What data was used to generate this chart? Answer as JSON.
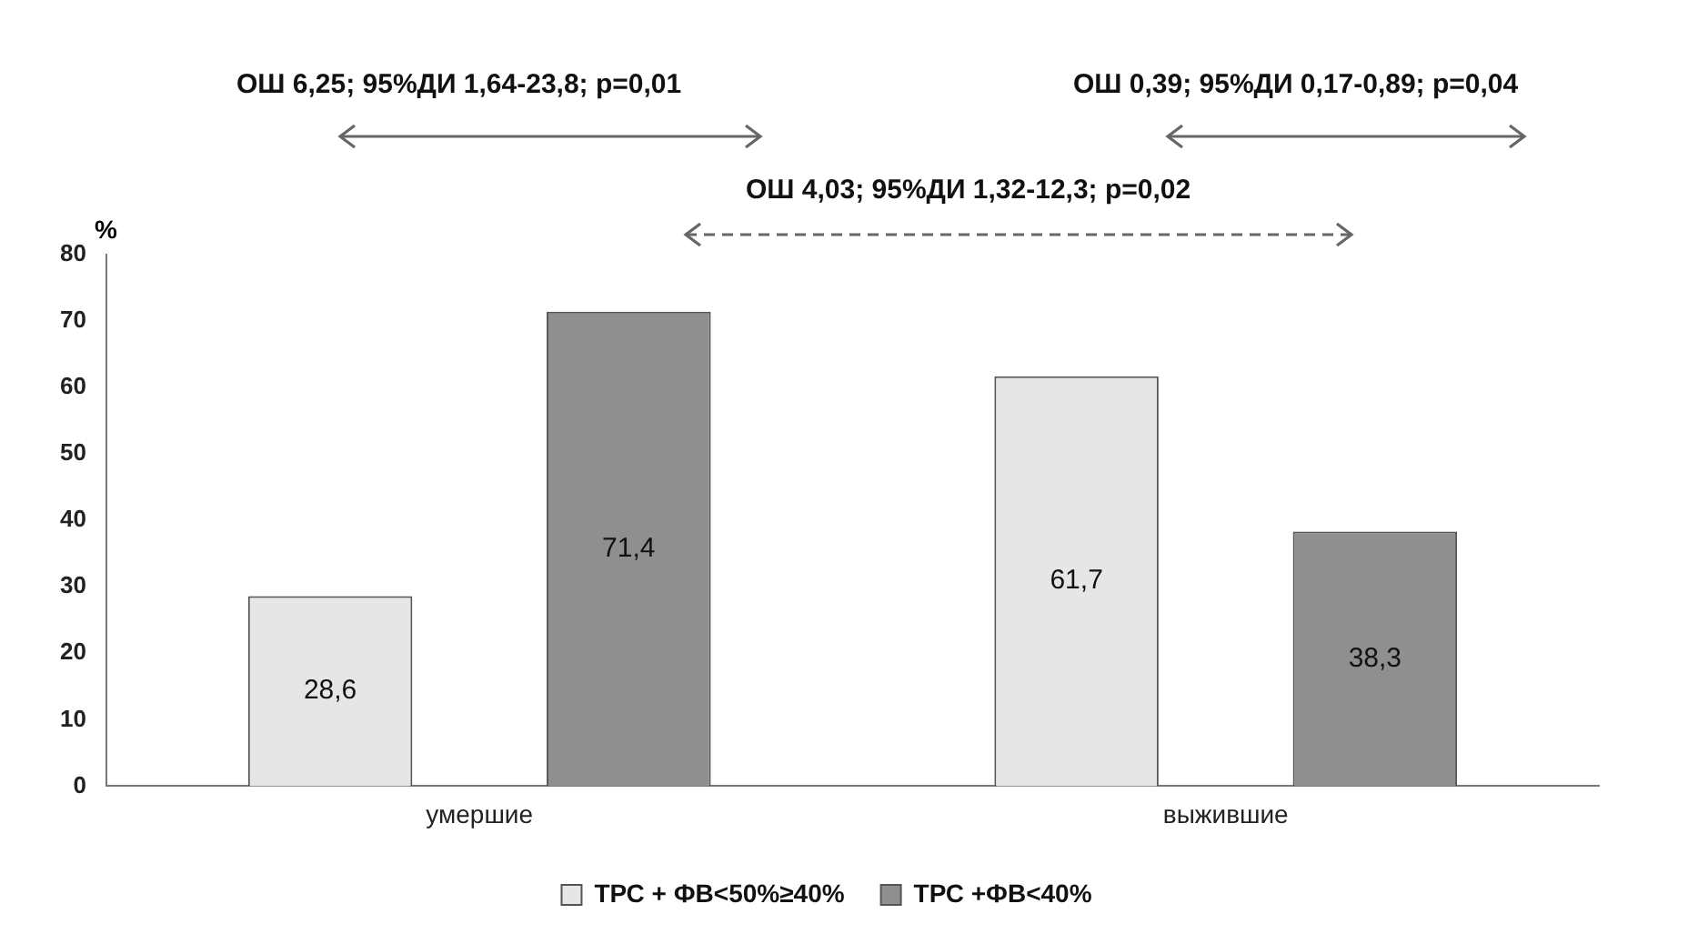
{
  "chart_data": {
    "type": "bar",
    "ylabel": "%",
    "categories": [
      "умершие",
      "выжившие"
    ],
    "series": [
      {
        "name": "ТРС + ФВ<50%≥40%",
        "color": "#e6e6e6",
        "values": [
          28.6,
          61.7
        ],
        "value_labels": [
          "28,6",
          "61,7"
        ]
      },
      {
        "name": "ТРС +ФВ<40%",
        "color": "#8f8f8f",
        "values": [
          71.4,
          38.3
        ],
        "value_labels": [
          "71,4",
          "38,3"
        ]
      }
    ],
    "ylim": [
      0,
      80
    ],
    "yticks": [
      0,
      10,
      20,
      30,
      40,
      50,
      60,
      70,
      80
    ],
    "grid": false,
    "legend": "bottom",
    "annotations": [
      "ОШ 6,25;  95%ДИ 1,64-23,8;  p=0,01",
      "ОШ 0,39;  95%ДИ 0,17-0,89;  p=0,04",
      "ОШ 4,03;  95%ДИ 1,32-12,3;  p=0,02"
    ]
  }
}
